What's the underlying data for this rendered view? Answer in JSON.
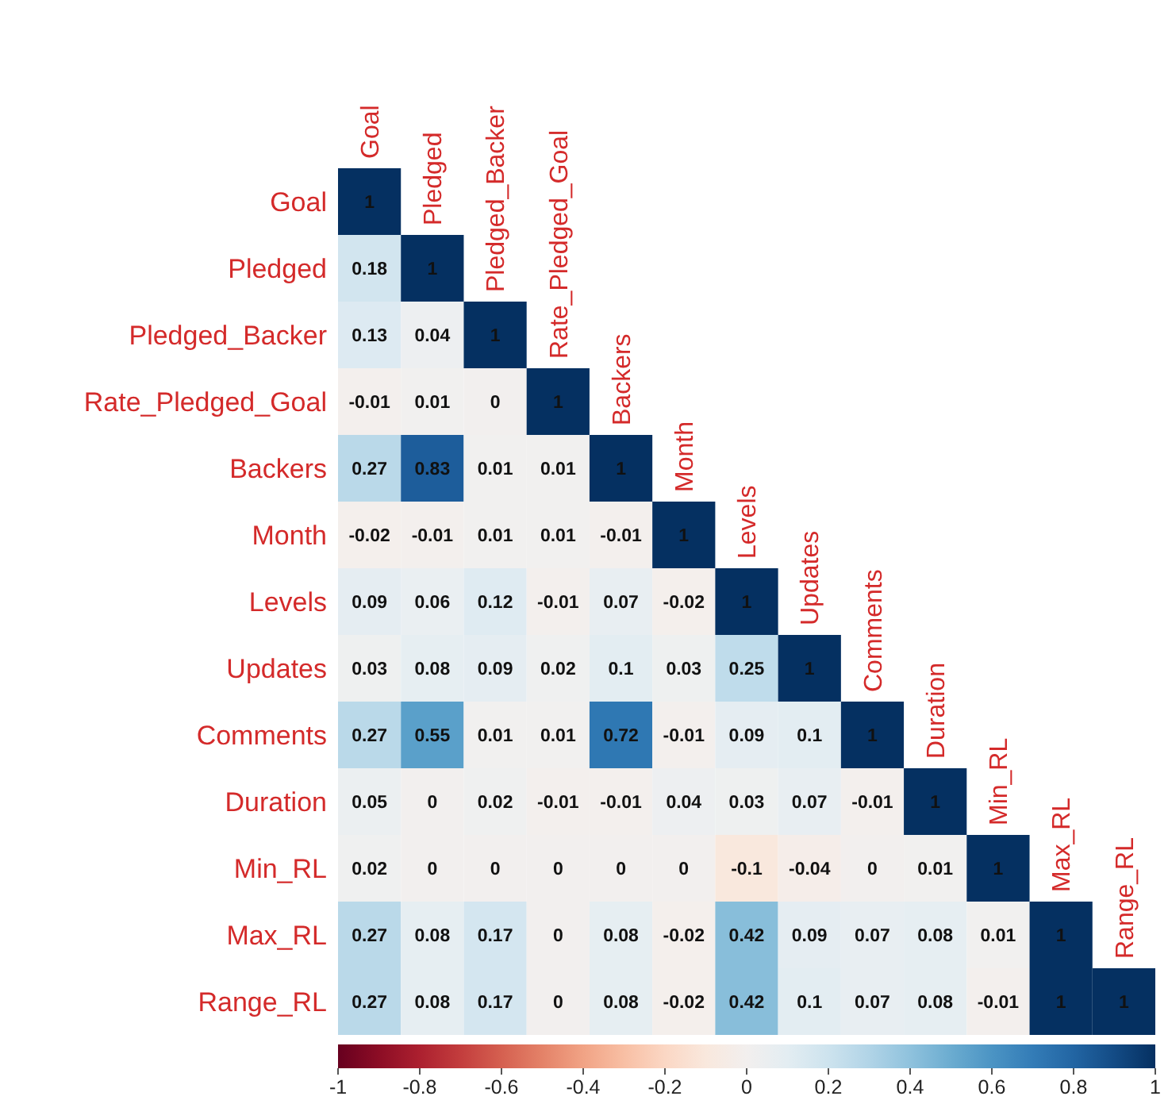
{
  "chart_data": {
    "type": "heatmap",
    "categories": [
      "Goal",
      "Pledged",
      "Pledged_Backer",
      "Rate_Pledged_Goal",
      "Backers",
      "Month",
      "Levels",
      "Updates",
      "Comments",
      "Duration",
      "Min_RL",
      "Max_RL",
      "Range_RL"
    ],
    "y_categories": [
      "Goal",
      "Pledged",
      "Pledged_Backer",
      "Rate_Pledged_Goal",
      "Backers",
      "Month",
      "Levels",
      "Updates",
      "Comments",
      "Duration",
      "Min_RL",
      "Max_RL",
      "Range_RL"
    ],
    "cells": [
      [
        1,
        null,
        null,
        null,
        null,
        null,
        null,
        null,
        null,
        null,
        null,
        null,
        null
      ],
      [
        0.18,
        1,
        null,
        null,
        null,
        null,
        null,
        null,
        null,
        null,
        null,
        null,
        null
      ],
      [
        0.13,
        0.04,
        1,
        null,
        null,
        null,
        null,
        null,
        null,
        null,
        null,
        null,
        null
      ],
      [
        -0.01,
        0.01,
        0,
        1,
        null,
        null,
        null,
        null,
        null,
        null,
        null,
        null,
        null
      ],
      [
        0.27,
        0.83,
        0.01,
        0.01,
        1,
        null,
        null,
        null,
        null,
        null,
        null,
        null,
        null
      ],
      [
        -0.02,
        -0.01,
        0.01,
        0.01,
        -0.01,
        1,
        null,
        null,
        null,
        null,
        null,
        null,
        null
      ],
      [
        0.09,
        0.06,
        0.12,
        -0.01,
        0.07,
        -0.02,
        1,
        null,
        null,
        null,
        null,
        null,
        null
      ],
      [
        0.03,
        0.08,
        0.09,
        0.02,
        0.1,
        0.03,
        0.25,
        1,
        null,
        null,
        null,
        null,
        null
      ],
      [
        0.27,
        0.55,
        0.01,
        0.01,
        0.72,
        -0.01,
        0.09,
        0.1,
        1,
        null,
        null,
        null,
        null
      ],
      [
        0.05,
        0,
        0.02,
        -0.01,
        -0.01,
        0.04,
        0.03,
        0.07,
        -0.01,
        1,
        null,
        null,
        null
      ],
      [
        0.02,
        0,
        0,
        0,
        0,
        0,
        -0.1,
        -0.04,
        0,
        0.01,
        1,
        null,
        null
      ],
      [
        0.27,
        0.08,
        0.17,
        0,
        0.08,
        -0.02,
        0.42,
        0.09,
        0.07,
        0.08,
        0.01,
        1,
        null
      ],
      [
        0.27,
        0.08,
        0.17,
        0,
        0.08,
        -0.02,
        0.42,
        0.1,
        0.07,
        0.08,
        -0.01,
        1,
        1
      ]
    ],
    "clim": [
      -1,
      1
    ],
    "cticks": [
      {
        "value": -1,
        "label": "-1"
      },
      {
        "value": -0.8,
        "label": "-0.8"
      },
      {
        "value": -0.6,
        "label": "-0.6"
      },
      {
        "value": -0.4,
        "label": "-0.4"
      },
      {
        "value": -0.2,
        "label": "-0.2"
      },
      {
        "value": 0,
        "label": "0"
      },
      {
        "value": 0.2,
        "label": "0.2"
      },
      {
        "value": 0.4,
        "label": "0.4"
      },
      {
        "value": 0.6,
        "label": "0.6"
      },
      {
        "value": 0.8,
        "label": "0.8"
      },
      {
        "value": 1,
        "label": "1"
      }
    ],
    "data_labels": true
  }
}
